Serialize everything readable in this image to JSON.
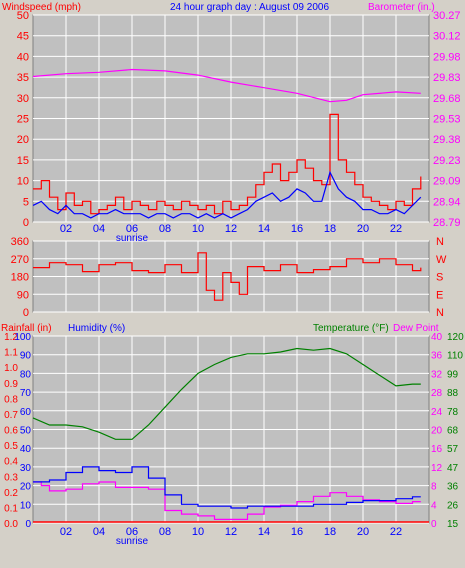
{
  "title": "24 hour graph day : August 09 2006",
  "colors": {
    "wind": "#ff0000",
    "gust": "#ff0000",
    "avg_wind": "#0000ff",
    "barometer": "#ff00ff",
    "direction": "#ff0000",
    "rainfall": "#ff0000",
    "humidity": "#0000ff",
    "temperature": "#008000",
    "dewpoint": "#ff00ff",
    "grid": "#ffffff",
    "panel": "#c0c0c0",
    "bg": "#d4d0c8"
  },
  "x_ticks": [
    "02",
    "04",
    "06",
    "08",
    "10",
    "12",
    "14",
    "16",
    "18",
    "20",
    "22"
  ],
  "sunrise_label": "sunrise",
  "chart_data": [
    {
      "type": "line",
      "panel": "wind",
      "title": "24 hour graph day : August 09 2006",
      "ylabel_left": "Windspeed (mph)",
      "ylabel_right": "Barometer (in.)",
      "left_ticks": [
        "50",
        "45",
        "40",
        "35",
        "30",
        "25",
        "20",
        "15",
        "10",
        "5",
        "0"
      ],
      "right_ticks": [
        "30.27",
        "30.12",
        "29.98",
        "29.83",
        "29.68",
        "29.53",
        "29.38",
        "29.23",
        "29.09",
        "28.94",
        "28.79"
      ],
      "ylim_left": [
        0,
        50
      ],
      "ylim_right": [
        28.79,
        30.27
      ],
      "xlim": [
        0,
        24
      ],
      "series": [
        {
          "key": "wind_max",
          "x": [
            0,
            0.5,
            1,
            1.5,
            2,
            2.5,
            3,
            3.5,
            4,
            4.5,
            5,
            5.5,
            6,
            6.5,
            7,
            7.5,
            8,
            8.5,
            9,
            9.5,
            10,
            10.5,
            11,
            11.5,
            12,
            12.5,
            13,
            13.5,
            14,
            14.5,
            15,
            15.5,
            16,
            16.5,
            17,
            17.5,
            18,
            18.5,
            19,
            19.5,
            20,
            20.5,
            21,
            21.5,
            22,
            22.5,
            23,
            23.5
          ],
          "values": [
            8,
            10,
            6,
            3,
            7,
            4,
            5,
            2,
            3,
            4,
            6,
            3,
            5,
            4,
            3,
            5,
            4,
            3,
            5,
            4,
            3,
            4,
            2,
            5,
            3,
            4,
            6,
            9,
            12,
            14,
            10,
            12,
            15,
            13,
            10,
            9,
            26,
            15,
            12,
            9,
            6,
            5,
            4,
            3,
            5,
            4,
            8,
            11
          ]
        },
        {
          "key": "wind_avg",
          "x": [
            0,
            0.5,
            1,
            1.5,
            2,
            2.5,
            3,
            3.5,
            4,
            4.5,
            5,
            5.5,
            6,
            6.5,
            7,
            7.5,
            8,
            8.5,
            9,
            9.5,
            10,
            10.5,
            11,
            11.5,
            12,
            12.5,
            13,
            13.5,
            14,
            14.5,
            15,
            15.5,
            16,
            16.5,
            17,
            17.5,
            18,
            18.5,
            19,
            19.5,
            20,
            20.5,
            21,
            21.5,
            22,
            22.5,
            23,
            23.5
          ],
          "values": [
            4,
            5,
            3,
            2,
            4,
            2,
            2,
            1,
            2,
            2,
            3,
            2,
            2,
            2,
            1,
            2,
            2,
            1,
            2,
            2,
            1,
            2,
            1,
            2,
            1,
            2,
            3,
            5,
            6,
            7,
            5,
            6,
            8,
            7,
            5,
            5,
            12,
            8,
            6,
            5,
            3,
            3,
            2,
            2,
            3,
            2,
            4,
            6
          ]
        },
        {
          "key": "barometer",
          "x": [
            0,
            2,
            4,
            6,
            8,
            10,
            12,
            14,
            16,
            18,
            19,
            20,
            22,
            23.5
          ],
          "values": [
            29.83,
            29.85,
            29.86,
            29.88,
            29.87,
            29.84,
            29.79,
            29.75,
            29.71,
            29.65,
            29.66,
            29.7,
            29.72,
            29.71
          ]
        }
      ]
    },
    {
      "type": "line",
      "panel": "direction",
      "ylabel_left_ticks": [
        "360",
        "270",
        "180",
        "90",
        "0"
      ],
      "right_ticks": [
        "N",
        "W",
        "S",
        "E",
        "N"
      ],
      "ylim": [
        0,
        360
      ],
      "xlim": [
        0,
        24
      ],
      "series": [
        {
          "key": "direction",
          "x": [
            0,
            1,
            2,
            3,
            4,
            5,
            6,
            7,
            8,
            9,
            10,
            10.5,
            11,
            11.5,
            12,
            12.5,
            13,
            14,
            15,
            16,
            17,
            18,
            19,
            20,
            21,
            22,
            23,
            23.5
          ],
          "values": [
            225,
            250,
            240,
            205,
            240,
            250,
            210,
            200,
            240,
            200,
            300,
            110,
            60,
            200,
            150,
            90,
            230,
            210,
            240,
            200,
            215,
            230,
            270,
            250,
            270,
            240,
            210,
            225
          ]
        }
      ]
    },
    {
      "type": "line",
      "panel": "rain_humidity_temperature",
      "ylabel_left": "Rainfall (in)",
      "ylabel_left2": "Humidity (%)",
      "ylabel_right": "Temperature (°F)",
      "ylabel_right2": "Dew Point",
      "rain_ticks": [
        "1.2",
        "1.1",
        "1.0",
        "0.9",
        "0.8",
        "0.7",
        "0.6",
        "0.5",
        "0.4",
        "0.3",
        "0.2",
        "0.1",
        "0.0"
      ],
      "humidity_ticks": [
        "100",
        "90",
        "80",
        "70",
        "60",
        "50",
        "40",
        "30",
        "20",
        "10",
        "0"
      ],
      "temp_c_ticks": [
        "40",
        "36",
        "32",
        "28",
        "24",
        "20",
        "16",
        "12",
        "8",
        "4",
        "0"
      ],
      "temp_f_ticks": [
        "120",
        "110",
        "99",
        "88",
        "78",
        "68",
        "57",
        "47",
        "36",
        "26",
        "15"
      ],
      "ylim_humidity": [
        0,
        100
      ],
      "ylim_temperature": [
        15,
        120
      ],
      "xlim": [
        0,
        24
      ],
      "series": [
        {
          "key": "rainfall",
          "x": [
            0,
            24
          ],
          "values": [
            0,
            0
          ]
        },
        {
          "key": "humidity",
          "x": [
            0,
            1,
            2,
            3,
            4,
            5,
            6,
            7,
            8,
            9,
            10,
            11,
            12,
            13,
            14,
            15,
            16,
            17,
            18,
            19,
            20,
            21,
            22,
            23,
            23.5
          ],
          "values": [
            22,
            23,
            27,
            30,
            28,
            27,
            30,
            24,
            15,
            10,
            9,
            9,
            8,
            9,
            9,
            9,
            9,
            10,
            10,
            11,
            12,
            12,
            13,
            14,
            14
          ]
        },
        {
          "key": "temperature",
          "x": [
            0,
            1,
            2,
            3,
            4,
            5,
            6,
            7,
            8,
            9,
            10,
            11,
            12,
            13,
            14,
            15,
            16,
            17,
            18,
            19,
            20,
            21,
            22,
            23,
            23.5
          ],
          "values": [
            74,
            70,
            70,
            69,
            66,
            62,
            62,
            70,
            80,
            90,
            99,
            104,
            108,
            110,
            110,
            111,
            113,
            112,
            113,
            110,
            104,
            98,
            92,
            93,
            93
          ]
        },
        {
          "key": "dewpoint",
          "x": [
            0,
            0.5,
            1,
            2,
            3,
            4,
            5,
            6,
            7,
            8,
            9,
            10,
            11,
            12,
            13,
            14,
            15,
            16,
            17,
            18,
            19,
            20,
            21,
            22,
            23,
            23.5
          ],
          "values": [
            38,
            36,
            33,
            34,
            37,
            38,
            35,
            35,
            34,
            22,
            20,
            19,
            17,
            17,
            20,
            24,
            25,
            27,
            30,
            32,
            30,
            28,
            27,
            26,
            27,
            27
          ]
        }
      ]
    }
  ]
}
